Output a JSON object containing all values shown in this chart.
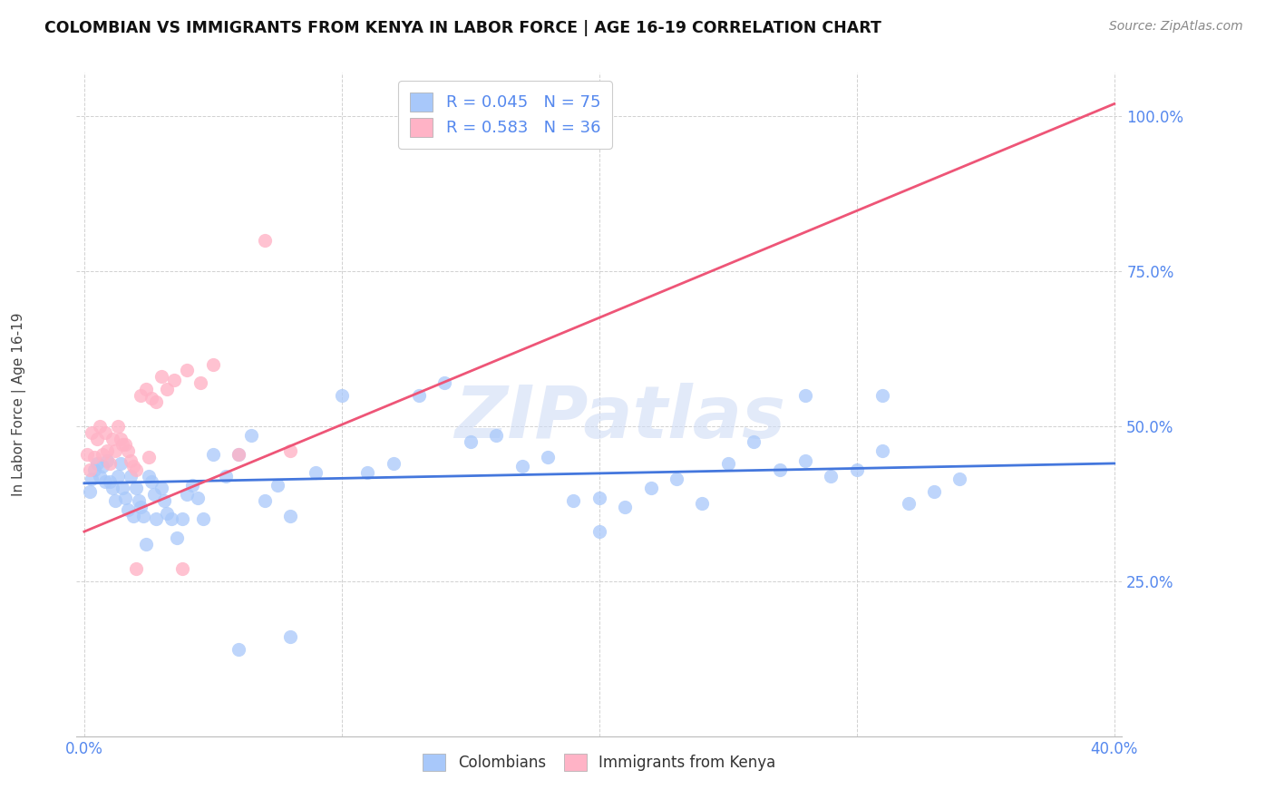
{
  "title": "COLOMBIAN VS IMMIGRANTS FROM KENYA IN LABOR FORCE | AGE 16-19 CORRELATION CHART",
  "source": "Source: ZipAtlas.com",
  "ylabel": "In Labor Force | Age 16-19",
  "xlim": [
    0.0,
    0.4
  ],
  "ylim": [
    0.0,
    1.07
  ],
  "colombian_R": 0.045,
  "colombian_N": 75,
  "kenya_R": 0.583,
  "kenya_N": 36,
  "colombian_color": "#a8c8fa",
  "kenya_color": "#ffb3c6",
  "colombian_line_color": "#4477dd",
  "kenya_line_color": "#ee5577",
  "legend_label_1": "Colombians",
  "legend_label_2": "Immigrants from Kenya",
  "tick_color": "#5588ee",
  "watermark": "ZIPatlas",
  "colombian_x": [
    0.002,
    0.003,
    0.004,
    0.005,
    0.006,
    0.007,
    0.008,
    0.009,
    0.01,
    0.011,
    0.012,
    0.013,
    0.014,
    0.015,
    0.016,
    0.017,
    0.018,
    0.019,
    0.02,
    0.021,
    0.022,
    0.023,
    0.024,
    0.025,
    0.026,
    0.027,
    0.028,
    0.03,
    0.031,
    0.032,
    0.034,
    0.036,
    0.038,
    0.04,
    0.042,
    0.044,
    0.046,
    0.05,
    0.055,
    0.06,
    0.065,
    0.07,
    0.075,
    0.08,
    0.09,
    0.1,
    0.11,
    0.12,
    0.13,
    0.14,
    0.15,
    0.16,
    0.17,
    0.18,
    0.19,
    0.2,
    0.21,
    0.22,
    0.23,
    0.24,
    0.25,
    0.26,
    0.27,
    0.28,
    0.29,
    0.3,
    0.31,
    0.32,
    0.33,
    0.34,
    0.28,
    0.31,
    0.2,
    0.08,
    0.06
  ],
  "colombian_y": [
    0.395,
    0.415,
    0.43,
    0.44,
    0.42,
    0.435,
    0.41,
    0.445,
    0.41,
    0.4,
    0.38,
    0.42,
    0.44,
    0.4,
    0.385,
    0.365,
    0.42,
    0.355,
    0.4,
    0.38,
    0.37,
    0.355,
    0.31,
    0.42,
    0.41,
    0.39,
    0.35,
    0.4,
    0.38,
    0.36,
    0.35,
    0.32,
    0.35,
    0.39,
    0.405,
    0.385,
    0.35,
    0.455,
    0.42,
    0.455,
    0.485,
    0.38,
    0.405,
    0.355,
    0.425,
    0.55,
    0.425,
    0.44,
    0.55,
    0.57,
    0.475,
    0.485,
    0.435,
    0.45,
    0.38,
    0.385,
    0.37,
    0.4,
    0.415,
    0.375,
    0.44,
    0.475,
    0.43,
    0.445,
    0.42,
    0.43,
    0.46,
    0.375,
    0.395,
    0.415,
    0.55,
    0.55,
    0.33,
    0.16,
    0.14
  ],
  "kenya_x": [
    0.001,
    0.002,
    0.003,
    0.004,
    0.005,
    0.006,
    0.007,
    0.008,
    0.009,
    0.01,
    0.011,
    0.012,
    0.013,
    0.014,
    0.015,
    0.016,
    0.017,
    0.018,
    0.019,
    0.02,
    0.022,
    0.024,
    0.026,
    0.028,
    0.03,
    0.032,
    0.035,
    0.038,
    0.04,
    0.045,
    0.05,
    0.06,
    0.07,
    0.08,
    0.02,
    0.025
  ],
  "kenya_y": [
    0.455,
    0.43,
    0.49,
    0.45,
    0.48,
    0.5,
    0.455,
    0.49,
    0.46,
    0.44,
    0.48,
    0.46,
    0.5,
    0.48,
    0.47,
    0.47,
    0.46,
    0.445,
    0.435,
    0.43,
    0.55,
    0.56,
    0.545,
    0.54,
    0.58,
    0.56,
    0.575,
    0.27,
    0.59,
    0.57,
    0.6,
    0.455,
    0.8,
    0.46,
    0.27,
    0.45
  ],
  "col_line_x": [
    0.0,
    0.4
  ],
  "col_line_y": [
    0.408,
    0.44
  ],
  "ken_line_x": [
    0.0,
    0.4
  ],
  "ken_line_y": [
    0.33,
    1.02
  ]
}
